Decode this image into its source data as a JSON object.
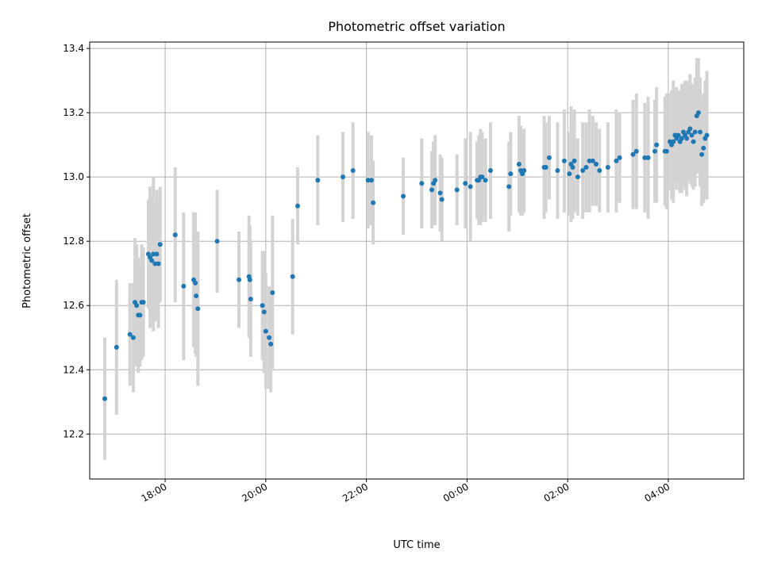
{
  "chart_data": {
    "type": "scatter",
    "title": "Photometric offset variation",
    "xlabel": "UTC time",
    "ylabel": "Photometric offset",
    "x_axis_kind": "time",
    "xlim": [
      "16:30",
      "05:30"
    ],
    "ylim": [
      12.06,
      13.42
    ],
    "x_ticks": [
      "18:00",
      "20:00",
      "22:00",
      "00:00",
      "02:00",
      "04:00"
    ],
    "y_ticks": [
      12.2,
      12.4,
      12.6,
      12.8,
      13.0,
      13.2,
      13.4
    ],
    "y_tick_labels": [
      "12.2",
      "12.4",
      "12.6",
      "12.8",
      "13.0",
      "13.2",
      "13.4"
    ],
    "grid": true,
    "legend": "none",
    "colors": {
      "points": "#1f77b4",
      "error_bars": "#d3d3d3",
      "grid": "#b0b0b0"
    },
    "series": [
      {
        "x": [
          "16:48",
          "17:02",
          "17:18",
          "17:22",
          "17:24",
          "17:26",
          "17:28",
          "17:30",
          "17:32",
          "17:34",
          "17:40",
          "17:42",
          "17:44",
          "17:46",
          "17:48",
          "17:50",
          "17:52",
          "17:54",
          "18:12",
          "18:22",
          "18:34",
          "18:36",
          "18:37",
          "18:39",
          "19:02",
          "19:28",
          "19:40",
          "19:41",
          "19:42",
          "19:56",
          "19:58",
          "20:00",
          "20:04",
          "20:06",
          "20:08",
          "20:32",
          "20:38",
          "21:02",
          "21:32",
          "21:44",
          "22:02",
          "22:06",
          "22:08",
          "22:44",
          "23:06",
          "23:18",
          "23:20",
          "23:22",
          "23:28",
          "23:30",
          "23:48",
          "23:58",
          "00:04",
          "00:12",
          "00:14",
          "00:16",
          "00:18",
          "00:22",
          "00:28",
          "00:50",
          "00:52",
          "01:02",
          "01:04",
          "01:06",
          "01:08",
          "01:32",
          "01:34",
          "01:38",
          "01:48",
          "01:56",
          "02:02",
          "02:04",
          "02:06",
          "02:08",
          "02:12",
          "02:18",
          "02:22",
          "02:26",
          "02:30",
          "02:34",
          "02:38",
          "02:48",
          "02:58",
          "03:02",
          "03:18",
          "03:22",
          "03:32",
          "03:36",
          "03:44",
          "03:46",
          "03:56",
          "03:58",
          "04:02",
          "04:04",
          "04:06",
          "04:08",
          "04:10",
          "04:12",
          "04:14",
          "04:16",
          "04:18",
          "04:20",
          "04:22",
          "04:24",
          "04:26",
          "04:28",
          "04:30",
          "04:32",
          "04:34",
          "04:36",
          "04:38",
          "04:40",
          "04:42",
          "04:44",
          "04:46"
        ],
        "y": [
          12.31,
          12.47,
          12.51,
          12.5,
          12.61,
          12.6,
          12.57,
          12.57,
          12.61,
          12.61,
          12.76,
          12.75,
          12.74,
          12.76,
          12.73,
          12.76,
          12.73,
          12.79,
          12.82,
          12.66,
          12.68,
          12.67,
          12.63,
          12.59,
          12.8,
          12.68,
          12.69,
          12.68,
          12.62,
          12.6,
          12.58,
          12.52,
          12.5,
          12.48,
          12.64,
          12.69,
          12.91,
          12.99,
          13.0,
          13.02,
          12.99,
          12.99,
          12.92,
          12.94,
          12.98,
          12.96,
          12.98,
          12.99,
          12.95,
          12.93,
          12.96,
          12.98,
          12.97,
          12.99,
          12.99,
          13.0,
          13.0,
          12.99,
          13.02,
          12.97,
          13.01,
          13.04,
          13.02,
          13.01,
          13.02,
          13.03,
          13.03,
          13.06,
          13.02,
          13.05,
          13.01,
          13.04,
          13.03,
          13.05,
          13.0,
          13.02,
          13.03,
          13.05,
          13.05,
          13.04,
          13.02,
          13.03,
          13.05,
          13.06,
          13.07,
          13.08,
          13.06,
          13.06,
          13.08,
          13.1,
          13.08,
          13.08,
          13.11,
          13.1,
          13.11,
          13.13,
          13.12,
          13.13,
          13.11,
          13.12,
          13.14,
          13.13,
          13.12,
          13.14,
          13.15,
          13.13,
          13.11,
          13.14,
          13.19,
          13.2,
          13.14,
          13.07,
          13.09,
          13.12,
          13.13
        ],
        "yerr": [
          0.19,
          0.21,
          0.16,
          0.17,
          0.2,
          0.19,
          0.18,
          0.16,
          0.18,
          0.17,
          0.17,
          0.22,
          0.2,
          0.24,
          0.18,
          0.2,
          0.2,
          0.18,
          0.21,
          0.23,
          0.21,
          0.22,
          0.19,
          0.24,
          0.16,
          0.15,
          0.19,
          0.17,
          0.18,
          0.17,
          0.19,
          0.18,
          0.16,
          0.15,
          0.24,
          0.18,
          0.12,
          0.14,
          0.14,
          0.15,
          0.15,
          0.14,
          0.13,
          0.12,
          0.14,
          0.12,
          0.13,
          0.14,
          0.12,
          0.13,
          0.11,
          0.14,
          0.17,
          0.12,
          0.14,
          0.15,
          0.14,
          0.13,
          0.15,
          0.14,
          0.13,
          0.15,
          0.14,
          0.13,
          0.13,
          0.16,
          0.14,
          0.13,
          0.15,
          0.16,
          0.13,
          0.18,
          0.16,
          0.16,
          0.12,
          0.15,
          0.14,
          0.16,
          0.14,
          0.13,
          0.13,
          0.14,
          0.16,
          0.14,
          0.17,
          0.18,
          0.17,
          0.19,
          0.16,
          0.18,
          0.17,
          0.18,
          0.15,
          0.17,
          0.19,
          0.14,
          0.16,
          0.14,
          0.16,
          0.17,
          0.15,
          0.17,
          0.18,
          0.15,
          0.17,
          0.16,
          0.15,
          0.17,
          0.18,
          0.17,
          0.17,
          0.16,
          0.17,
          0.18,
          0.2
        ]
      }
    ]
  }
}
